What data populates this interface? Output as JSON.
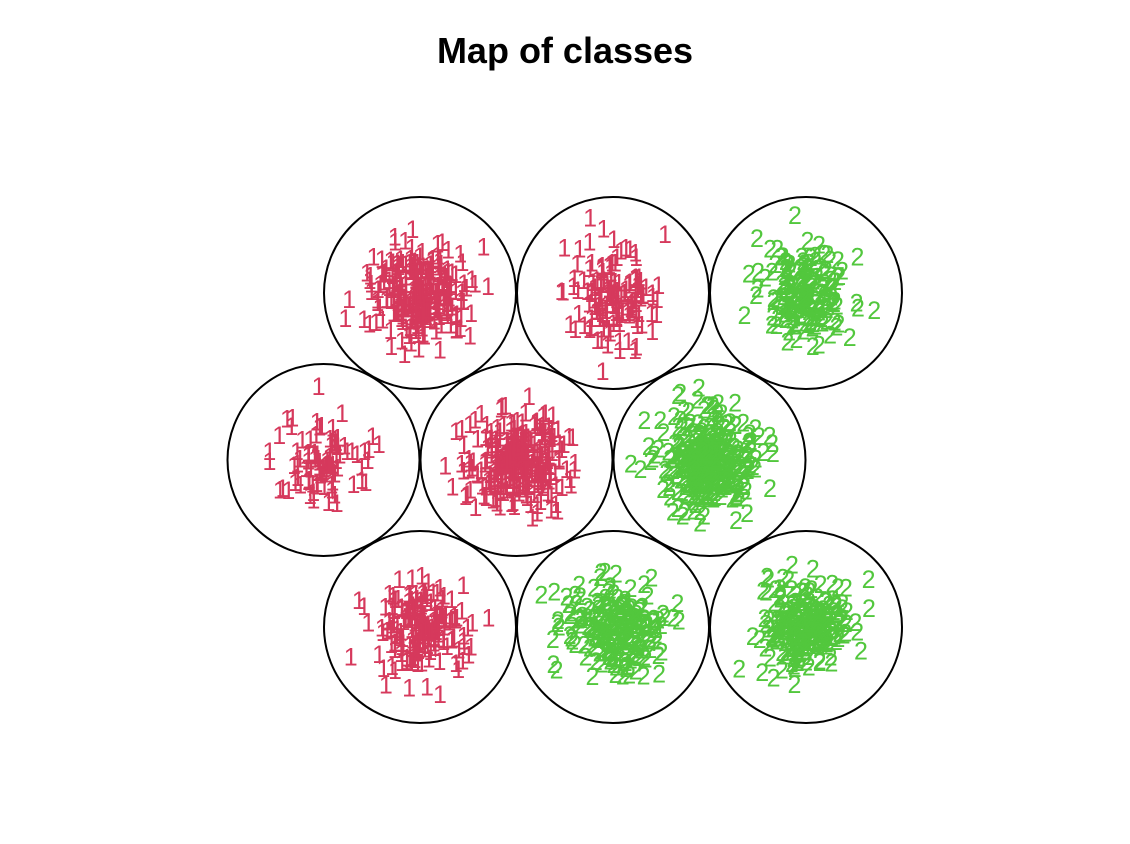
{
  "chart_data": {
    "type": "scatter",
    "title": "Map of classes",
    "xlabel": "",
    "ylabel": "",
    "grid": false,
    "class_colors": {
      "1": "#D6395C",
      "2": "#52C73D"
    },
    "grid_shape": {
      "rows": 3,
      "cols": 3,
      "topology": "hexagonal"
    },
    "nodes": [
      {
        "row": 1,
        "col": 1,
        "class": "1",
        "count": 260,
        "spread": 0.34
      },
      {
        "row": 1,
        "col": 2,
        "class": "1",
        "count": 140,
        "spread": 0.34
      },
      {
        "row": 1,
        "col": 3,
        "class": "2",
        "count": 180,
        "spread": 0.3
      },
      {
        "row": 2,
        "col": 1,
        "class": "1",
        "count": 90,
        "spread": 0.36
      },
      {
        "row": 2,
        "col": 2,
        "class": "1",
        "count": 280,
        "spread": 0.34
      },
      {
        "row": 2,
        "col": 3,
        "class": "2",
        "count": 340,
        "spread": 0.32
      },
      {
        "row": 3,
        "col": 1,
        "class": "1",
        "count": 180,
        "spread": 0.32
      },
      {
        "row": 3,
        "col": 2,
        "class": "2",
        "count": 220,
        "spread": 0.32
      },
      {
        "row": 3,
        "col": 3,
        "class": "2",
        "count": 240,
        "spread": 0.32
      }
    ]
  }
}
